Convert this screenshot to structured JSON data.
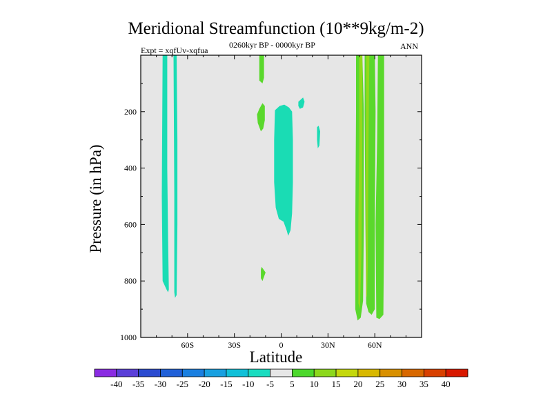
{
  "chart_data": {
    "type": "heatmap",
    "title": "Meridional Streamfunction (10**9kg/m-2)",
    "left_annotation": "Expt = xqfUv-xqfua",
    "center_annotation": "0260kyr BP - 0000kyr BP",
    "right_annotation": "ANN",
    "xlabel": "Latitude",
    "ylabel": "Pressure (in hPa)",
    "xlim": [
      -90,
      90
    ],
    "ylim": [
      1000,
      0
    ],
    "x_ticks": [
      {
        "value": -60,
        "label": "60S"
      },
      {
        "value": -30,
        "label": "30S"
      },
      {
        "value": 0,
        "label": "0"
      },
      {
        "value": 30,
        "label": "30N"
      },
      {
        "value": 60,
        "label": "60N"
      }
    ],
    "y_ticks": [
      {
        "value": 200,
        "label": "200"
      },
      {
        "value": 400,
        "label": "400"
      },
      {
        "value": 600,
        "label": "600"
      },
      {
        "value": 800,
        "label": "800"
      },
      {
        "value": 1000,
        "label": "1000"
      }
    ],
    "background_color": "#e6e6e6",
    "contour_levels": [
      -40,
      -35,
      -30,
      -25,
      -20,
      -15,
      -10,
      -5,
      5,
      10,
      15,
      20,
      25,
      30,
      35,
      40
    ],
    "colorbar_labels": [
      "-40",
      "-35",
      "-30",
      "-25",
      "-20",
      "-15",
      "-10",
      "-5",
      "5",
      "10",
      "15",
      "20",
      "25",
      "30",
      "35",
      "40"
    ],
    "colorbar_colors": [
      "#8a2be2",
      "#5a3fd8",
      "#2b4bd0",
      "#2060d8",
      "#1a7fe0",
      "#18a0e0",
      "#10c0d8",
      "#1adcc0",
      "#e6e6e6",
      "#4cd82c",
      "#8cd81c",
      "#c4d80c",
      "#d8b800",
      "#d89000",
      "#d86800",
      "#d84000",
      "#d81800"
    ],
    "regions": [
      {
        "name": "negative-column-70S",
        "value_range": [
          -10,
          -5
        ],
        "color": "#1adcb4",
        "points": [
          [
            -76,
            0
          ],
          [
            -73,
            0
          ],
          [
            -73,
            400
          ],
          [
            -72.5,
            650
          ],
          [
            -72,
            830
          ],
          [
            -72.5,
            840
          ],
          [
            -73.5,
            830
          ],
          [
            -76,
            800
          ],
          [
            -76.5,
            500
          ]
        ]
      },
      {
        "name": "negative-column-63S",
        "value_range": [
          -10,
          -5
        ],
        "color": "#1adcb4",
        "points": [
          [
            -69,
            0
          ],
          [
            -67,
            0
          ],
          [
            -66.5,
            300
          ],
          [
            -66.5,
            600
          ],
          [
            -67,
            850
          ],
          [
            -68,
            860
          ],
          [
            -68.5,
            840
          ],
          [
            -68.5,
            500
          ]
        ]
      },
      {
        "name": "negative-cell-equator",
        "value_range": [
          -10,
          -5
        ],
        "color": "#1adcb4",
        "points": [
          [
            -4,
            195
          ],
          [
            -1,
            180
          ],
          [
            2,
            175
          ],
          [
            5,
            185
          ],
          [
            7,
            200
          ],
          [
            7.5,
            300
          ],
          [
            7.5,
            450
          ],
          [
            7,
            560
          ],
          [
            6,
            620
          ],
          [
            4.5,
            640
          ],
          [
            3.5,
            620
          ],
          [
            1.5,
            590
          ],
          [
            -1.5,
            580
          ],
          [
            -3.5,
            540
          ],
          [
            -4.5,
            450
          ],
          [
            -4.5,
            300
          ]
        ]
      },
      {
        "name": "negative-blob-15N",
        "value_range": [
          -10,
          -5
        ],
        "color": "#1adcb4",
        "points": [
          [
            11,
            165
          ],
          [
            14,
            150
          ],
          [
            15,
            165
          ],
          [
            14,
            185
          ],
          [
            12,
            190
          ],
          [
            11,
            180
          ]
        ]
      },
      {
        "name": "negative-blob-24N",
        "value_range": [
          -10,
          -5
        ],
        "color": "#1adcb4",
        "points": [
          [
            23,
            255
          ],
          [
            24,
            250
          ],
          [
            25,
            270
          ],
          [
            24.5,
            320
          ],
          [
            23.5,
            330
          ],
          [
            23,
            300
          ]
        ]
      },
      {
        "name": "positive-strip-12S-upper",
        "value_range": [
          5,
          10
        ],
        "color": "#5ad82c",
        "points": [
          [
            -14,
            0
          ],
          [
            -11,
            0
          ],
          [
            -11,
            80
          ],
          [
            -12,
            100
          ],
          [
            -14,
            90
          ]
        ]
      },
      {
        "name": "positive-blob-15S",
        "value_range": [
          5,
          10
        ],
        "color": "#5ad82c",
        "points": [
          [
            -14,
            190
          ],
          [
            -12,
            170
          ],
          [
            -10.5,
            180
          ],
          [
            -10.5,
            230
          ],
          [
            -11.5,
            260
          ],
          [
            -13,
            270
          ],
          [
            -15,
            240
          ],
          [
            -15.5,
            210
          ]
        ]
      },
      {
        "name": "positive-blob-12S-lower",
        "value_range": [
          5,
          10
        ],
        "color": "#5ad82c",
        "points": [
          [
            -13,
            760
          ],
          [
            -12.5,
            750
          ],
          [
            -10,
            770
          ],
          [
            -12,
            800
          ],
          [
            -13,
            790
          ]
        ]
      },
      {
        "name": "positive-column-45N",
        "value_range": [
          5,
          10
        ],
        "color": "#5ad82c",
        "points": [
          [
            48,
            0
          ],
          [
            52,
            0
          ],
          [
            53,
            200
          ],
          [
            53,
            600
          ],
          [
            52.5,
            870
          ],
          [
            51,
            930
          ],
          [
            49,
            940
          ],
          [
            47.5,
            900
          ],
          [
            47.5,
            600
          ],
          [
            48,
            200
          ]
        ]
      },
      {
        "name": "positive-column-55N",
        "value_range": [
          5,
          10
        ],
        "color": "#5ad82c",
        "points": [
          [
            53.5,
            0
          ],
          [
            60,
            0
          ],
          [
            60.5,
            200
          ],
          [
            60,
            600
          ],
          [
            60,
            900
          ],
          [
            58,
            920
          ],
          [
            56,
            910
          ],
          [
            54.5,
            880
          ],
          [
            54,
            600
          ],
          [
            53.5,
            200
          ]
        ]
      },
      {
        "name": "positive-column-65N",
        "value_range": [
          5,
          10
        ],
        "color": "#5ad82c",
        "points": [
          [
            62,
            0
          ],
          [
            66,
            0
          ],
          [
            66,
            600
          ],
          [
            65.5,
            920
          ],
          [
            63,
            935
          ],
          [
            61,
            930
          ],
          [
            60.5,
            600
          ],
          [
            61.5,
            300
          ]
        ]
      },
      {
        "name": "positive-core-47N",
        "value_range": [
          10,
          15
        ],
        "color": "#94d81c",
        "points": [
          [
            50,
            0
          ],
          [
            52,
            0
          ],
          [
            52,
            300
          ],
          [
            51.5,
            700
          ],
          [
            50.5,
            900
          ],
          [
            49.5,
            880
          ],
          [
            49.5,
            600
          ],
          [
            50,
            300
          ]
        ]
      },
      {
        "name": "positive-core-57N",
        "value_range": [
          10,
          15
        ],
        "color": "#94d81c",
        "points": [
          [
            54.5,
            0
          ],
          [
            56.5,
            0
          ],
          [
            56,
            300
          ],
          [
            55.5,
            750
          ],
          [
            55,
            860
          ],
          [
            54.5,
            850
          ],
          [
            54.2,
            500
          ]
        ]
      }
    ]
  }
}
